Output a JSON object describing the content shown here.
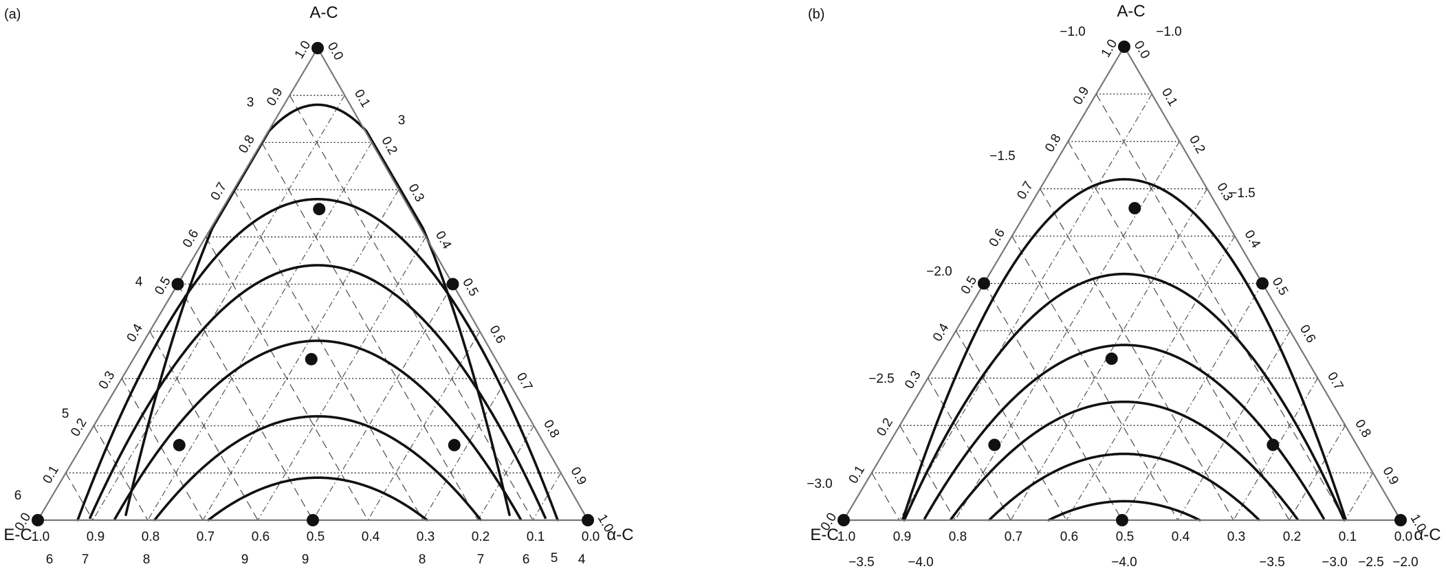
{
  "panels": [
    {
      "label": "(a)",
      "vertex_labels": {
        "top": "A-C",
        "left": "E-C",
        "right": "α-C"
      },
      "tri": [
        [
          462,
          70
        ],
        [
          55,
          757
        ],
        [
          855,
          757
        ]
      ],
      "left_ticks": [
        "0.0",
        "0.1",
        "0.2",
        "0.3",
        "0.4",
        "0.5",
        "0.6",
        "0.7",
        "0.8",
        "0.9",
        "1.0"
      ],
      "right_ticks": [
        "0.0",
        "0.1",
        "0.2",
        "0.3",
        "0.4",
        "0.5",
        "0.6",
        "0.7",
        "0.8",
        "0.9",
        "1.0"
      ],
      "bottom_ticks": [
        "1.0",
        "0.9",
        "0.8",
        "0.7",
        "0.6",
        "0.5",
        "0.4",
        "0.3",
        "0.2",
        "0.1",
        "0.0"
      ],
      "contour_values_below": [
        "6",
        "7",
        "8",
        "9",
        "9",
        "8",
        "7",
        "6",
        "5",
        "4"
      ],
      "contour_values_left": [
        "3",
        "4",
        "5",
        "6"
      ],
      "contour_values_right": [
        "3"
      ],
      "contours": [
        [
          0.88,
          0.14
        ],
        [
          0.68,
          0.28
        ],
        [
          0.54,
          0.32
        ],
        [
          0.38,
          0.36
        ],
        [
          0.22,
          0.4
        ],
        [
          0.09,
          0.44
        ]
      ],
      "design_points": [
        [
          0,
          1,
          0
        ],
        [
          0,
          0.5,
          0.5
        ],
        [
          0.5,
          0,
          0.5
        ],
        [
          0.67,
          0.17,
          0.17
        ],
        [
          0.17,
          0.67,
          0.17
        ],
        [
          0.17,
          0.17,
          0.67
        ],
        [
          1,
          0,
          0
        ],
        [
          0,
          0,
          1
        ],
        [
          0.33,
          0.33,
          0.33
        ],
        [
          0.5,
          0.5,
          0
        ]
      ]
    },
    {
      "label": "(b)",
      "vertex_labels": {
        "top": "A-C",
        "left": "E-C",
        "right": "α-C"
      },
      "tri": [
        [
          1635,
          68
        ],
        [
          1227,
          757
        ],
        [
          2037,
          757
        ]
      ],
      "left_ticks": [
        "0.0",
        "0.1",
        "0.2",
        "0.3",
        "0.4",
        "0.5",
        "0.6",
        "0.7",
        "0.8",
        "0.9",
        "1.0"
      ],
      "right_ticks": [
        "0.0",
        "0.1",
        "0.2",
        "0.3",
        "0.4",
        "0.5",
        "0.6",
        "0.7",
        "0.8",
        "0.9",
        "1.0"
      ],
      "bottom_ticks": [
        "1.0",
        "0.9",
        "0.8",
        "0.7",
        "0.6",
        "0.5",
        "0.4",
        "0.3",
        "0.2",
        "0.1",
        "0.0"
      ],
      "contour_values_below": [
        "−3.5",
        "−4.0",
        "−4.0",
        "−3.5",
        "−3.0",
        "−2.5",
        "−2.0"
      ],
      "contour_values_left": [
        "−1.0",
        "−1.5",
        "−2.0",
        "−2.5",
        "−3.0"
      ],
      "contour_values_right": [
        "−1.0",
        "−1.5"
      ],
      "contours": [
        [
          0.72,
          0.22
        ],
        [
          0.52,
          0.3
        ],
        [
          0.37,
          0.35
        ],
        [
          0.25,
          0.39
        ],
        [
          0.14,
          0.42
        ],
        [
          0.04,
          0.46
        ]
      ],
      "design_points": [
        [
          0,
          1,
          0
        ],
        [
          0,
          0.5,
          0.5
        ],
        [
          0.5,
          0,
          0.5
        ],
        [
          0.67,
          0.17,
          0.17
        ],
        [
          0.17,
          0.67,
          0.17
        ],
        [
          0.17,
          0.17,
          0.67
        ],
        [
          1,
          0,
          0
        ],
        [
          0,
          0,
          1
        ],
        [
          0.33,
          0.33,
          0.33
        ],
        [
          0.5,
          0.5,
          0
        ]
      ]
    }
  ]
}
